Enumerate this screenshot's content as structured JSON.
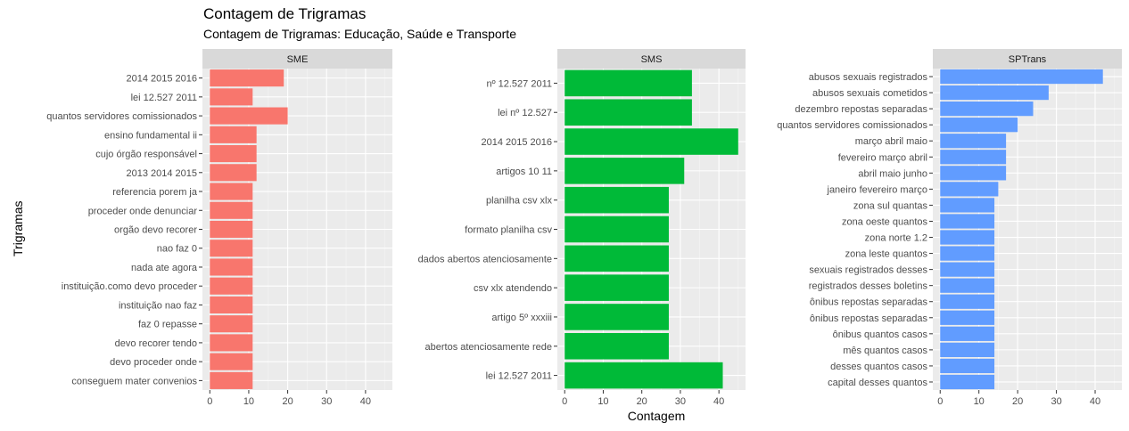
{
  "title": "Contagem de Trigramas",
  "subtitle": "Contagem de Trigramas: Educação, Saúde e Transporte",
  "ylabel": "Trigramas",
  "xlabel": "Contagem",
  "colors": {
    "SME": "#F8766D",
    "SMS": "#00BA38",
    "SPTrans": "#619CFF",
    "panel_bg": "#EBEBEB",
    "strip_bg": "#D9D9D9",
    "grid": "#FFFFFF"
  },
  "chart_data": [
    {
      "type": "bar",
      "orientation": "horizontal",
      "facet": "SME",
      "xlim": [
        0,
        45
      ],
      "xticks": [
        0,
        10,
        20,
        30,
        40
      ],
      "categories": [
        "2014 2015 2016",
        "lei 12.527 2011",
        "quantos servidores comissionados",
        "ensino fundamental ii",
        "cujo órgão responsável",
        "2013 2014 2015",
        "referencia porem ja",
        "proceder onde denunciar",
        "orgão devo recorer",
        "nao faz 0",
        "nada ate agora",
        "instituição.como devo proceder",
        "instituição nao faz",
        "faz 0 repasse",
        "devo recorer tendo",
        "devo proceder onde",
        "conseguem mater convenios"
      ],
      "values": [
        19,
        11,
        20,
        12,
        12,
        12,
        11,
        11,
        11,
        11,
        11,
        11,
        11,
        11,
        11,
        11,
        11
      ]
    },
    {
      "type": "bar",
      "orientation": "horizontal",
      "facet": "SMS",
      "xlim": [
        0,
        45
      ],
      "xticks": [
        0,
        10,
        20,
        30,
        40
      ],
      "categories": [
        "nº 12.527 2011",
        "lei nº 12.527",
        "2014 2015 2016",
        "artigos 10 11",
        "planilha csv xlx",
        "formato planilha csv",
        "dados abertos atenciosamente",
        "csv xlx atendendo",
        "artigo 5º xxxiii",
        "abertos atenciosamente rede",
        "lei 12.527 2011"
      ],
      "values": [
        33,
        33,
        45,
        31,
        27,
        27,
        27,
        27,
        27,
        27,
        41
      ]
    },
    {
      "type": "bar",
      "orientation": "horizontal",
      "facet": "SPTrans",
      "xlim": [
        0,
        45
      ],
      "xticks": [
        0,
        10,
        20,
        30,
        40
      ],
      "categories": [
        "abusos sexuais registrados",
        "abusos sexuais cometidos",
        "dezembro repostas separadas",
        "quantos servidores comissionados",
        "março abril maio",
        "fevereiro março abril",
        "abril maio junho",
        "janeiro fevereiro março",
        "zona sul quantas",
        "zona oeste quantos",
        "zona norte 1.2",
        "zona leste quantos",
        "sexuais registrados desses",
        "registrados desses boletins",
        "ônibus repostas separadas",
        "ônibus repostas separadas",
        "ônibus quantos casos",
        "mês quantos casos",
        "desses quantos casos",
        "capital desses quantos"
      ],
      "values": [
        42,
        28,
        24,
        20,
        17,
        17,
        17,
        15,
        14,
        14,
        14,
        14,
        14,
        14,
        14,
        14,
        14,
        14,
        14,
        14
      ]
    }
  ]
}
